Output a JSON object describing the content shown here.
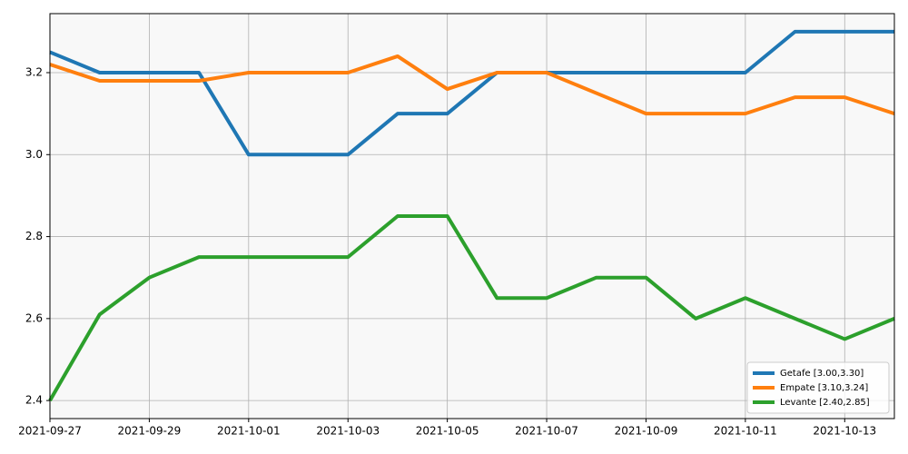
{
  "chart_data": {
    "type": "line",
    "x": [
      "2021-09-27",
      "2021-09-28",
      "2021-09-29",
      "2021-09-30",
      "2021-10-01",
      "2021-10-02",
      "2021-10-03",
      "2021-10-04",
      "2021-10-05",
      "2021-10-06",
      "2021-10-07",
      "2021-10-08",
      "2021-10-09",
      "2021-10-10",
      "2021-10-11",
      "2021-10-12",
      "2021-10-13",
      "2021-10-14"
    ],
    "series": [
      {
        "name": "Getafe [3.00,3.30]",
        "color": "#1f77b4",
        "values": [
          3.25,
          3.2,
          3.2,
          3.2,
          3.0,
          3.0,
          3.0,
          3.1,
          3.1,
          3.2,
          3.2,
          3.2,
          3.2,
          3.2,
          3.2,
          3.3,
          3.3,
          3.3
        ]
      },
      {
        "name": "Empate [3.10,3.24]",
        "color": "#ff7f0e",
        "values": [
          3.22,
          3.18,
          3.18,
          3.18,
          3.2,
          3.2,
          3.2,
          3.24,
          3.16,
          3.2,
          3.2,
          3.15,
          3.1,
          3.1,
          3.1,
          3.14,
          3.14,
          3.1
        ]
      },
      {
        "name": "Levante [2.40,2.85]",
        "color": "#2ca02c",
        "values": [
          2.4,
          2.61,
          2.7,
          2.75,
          2.75,
          2.75,
          2.75,
          2.85,
          2.85,
          2.65,
          2.65,
          2.7,
          2.7,
          2.6,
          2.65,
          2.6,
          2.55,
          2.6
        ]
      }
    ],
    "xlim": [
      "2021-09-27",
      "2021-10-14"
    ],
    "xticks": [
      "2021-09-27",
      "2021-09-29",
      "2021-10-01",
      "2021-10-03",
      "2021-10-05",
      "2021-10-07",
      "2021-10-09",
      "2021-10-11",
      "2021-10-13"
    ],
    "ylim": [
      2.356,
      3.344
    ],
    "yticks": [
      2.4,
      2.6,
      2.8,
      {
        "value": 3,
        "label": "3.0"
      },
      3.2
    ],
    "grid": true,
    "legend": "lower right"
  }
}
